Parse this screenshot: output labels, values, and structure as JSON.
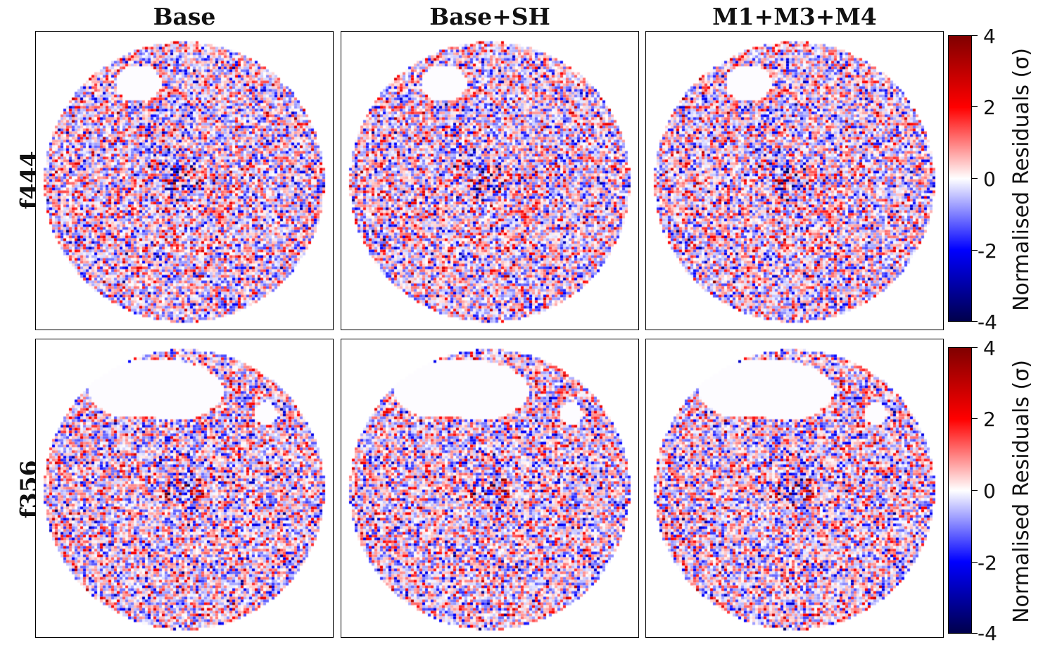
{
  "chart_data": {
    "type": "heatmap",
    "columns": [
      "Base",
      "Base+SH",
      "M1+M3+M4"
    ],
    "rows": [
      "f444",
      "f356"
    ],
    "colorbar": {
      "label": "Normalised Residuals (σ)",
      "range": [
        -4,
        4
      ],
      "ticks": [
        "4",
        "2",
        "0",
        "-2",
        "-4"
      ],
      "tick_values": [
        4,
        2,
        0,
        -2,
        -4
      ],
      "colormap": "seismic",
      "colors": [
        "#00004c",
        "#0000ff",
        "#ffffff",
        "#ff0000",
        "#800000"
      ]
    },
    "panels": [
      {
        "row": "f444",
        "column": "Base",
        "masked_regions": [
          "upper-left blob"
        ]
      },
      {
        "row": "f444",
        "column": "Base+SH",
        "masked_regions": [
          "upper-left blob"
        ]
      },
      {
        "row": "f444",
        "column": "M1+M3+M4",
        "masked_regions": [
          "upper-left blob"
        ]
      },
      {
        "row": "f356",
        "column": "Base",
        "masked_regions": [
          "upper-left crescent",
          "small upper-right blob"
        ]
      },
      {
        "row": "f356",
        "column": "Base+SH",
        "masked_regions": [
          "upper-left crescent",
          "small upper-right blob"
        ]
      },
      {
        "row": "f356",
        "column": "M1+M3+M4",
        "masked_regions": [
          "upper-left crescent",
          "small upper-right blob"
        ]
      }
    ]
  }
}
